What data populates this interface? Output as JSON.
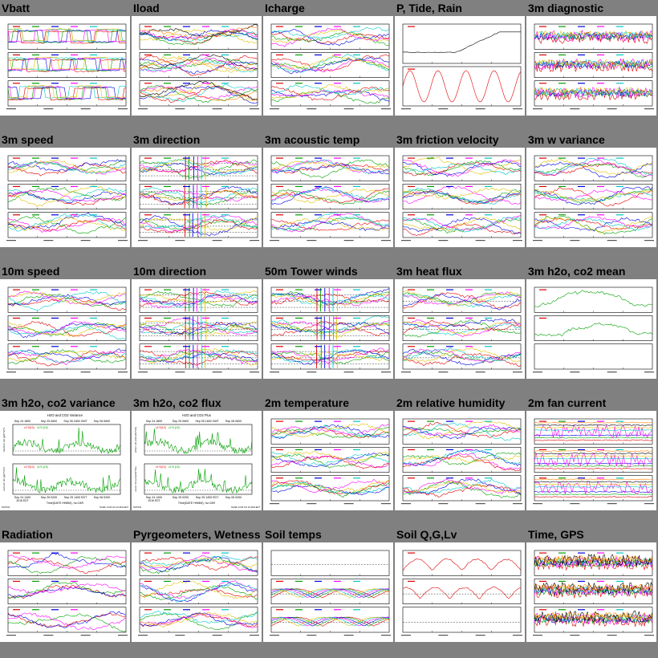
{
  "page": {
    "background": "#808080"
  },
  "series_colors": [
    "#e00000",
    "#00a000",
    "#0000e0",
    "#ff00ff",
    "#00c8c8",
    "#e0c000",
    "#000000",
    "#ff8000"
  ],
  "panels": [
    {
      "title": "Vbatt",
      "kind": "lines",
      "sub": 3,
      "lines": 6
    },
    {
      "title": "Iload",
      "kind": "lines",
      "sub": 3,
      "lines": 8
    },
    {
      "title": "Icharge",
      "kind": "lines",
      "sub": 3,
      "lines": 6
    },
    {
      "title": "P, Tide, Rain",
      "kind": "ptide",
      "sub": 2,
      "lines": 1
    },
    {
      "title": "3m diagnostic",
      "kind": "noise",
      "sub": 3,
      "lines": 6
    },
    {
      "title": "3m speed",
      "kind": "lines",
      "sub": 3,
      "lines": 6
    },
    {
      "title": "3m direction",
      "kind": "direction",
      "sub": 3,
      "lines": 6
    },
    {
      "title": "3m acoustic temp",
      "kind": "lines",
      "sub": 3,
      "lines": 6
    },
    {
      "title": "3m friction velocity",
      "kind": "lines",
      "sub": 3,
      "lines": 6
    },
    {
      "title": "3m w variance",
      "kind": "lines",
      "sub": 3,
      "lines": 6
    },
    {
      "title": "10m speed",
      "kind": "lines",
      "sub": 3,
      "lines": 6
    },
    {
      "title": "10m direction",
      "kind": "direction",
      "sub": 3,
      "lines": 6
    },
    {
      "title": "50m Tower winds",
      "kind": "direction",
      "sub": 3,
      "lines": 6
    },
    {
      "title": "3m heat flux",
      "kind": "lines",
      "sub": 3,
      "lines": 6
    },
    {
      "title": "3m h2o, co2 mean",
      "kind": "lines",
      "sub": 3,
      "lines": 1
    },
    {
      "title": "3m h2o, co2 variance",
      "kind": "bigtwo",
      "sub": 2,
      "lines": 2,
      "detail": {
        "title": "H2O and CO2 Variance",
        "top_ticks": [
          "Sep 24 1800",
          "Sep 25 0600",
          "Sep 05 1800 GMT",
          "Sep 06 0600"
        ],
        "legend": [
          "c1*0(10)",
          "c1*0.(15)"
        ],
        "y_top": "h2o'h2o' 3m (g/m^3)^2",
        "y_bottom": "co2'co2' 3m (g/m^3)^2",
        "bottom_ticks": [
          "Sep 24 1400",
          "Sep 25 0200",
          "Sep 25 1400 EDT",
          "Sep 06 0200"
        ],
        "year_note": "2016 EDT",
        "xlabel": "Time(DATE HHMM), hv=24R",
        "footer_left": "NOST24",
        "footer_right": "NCAR/ 14:06 Oct 24 2016 EDT"
      }
    },
    {
      "title": "3m h2o, co2 flux",
      "kind": "bigtwo",
      "sub": 2,
      "lines": 2,
      "detail": {
        "title": "H2O and CO2 Flux",
        "top_ticks": [
          "Sep 24 1800",
          "Sep 25 0600",
          "Sep 05 1800 GMT",
          "Sep 06 0600"
        ],
        "legend": [
          "c1*0(10)",
          "c1*0.(15)"
        ],
        "y_top": "w'h2o' 3m (mmol/m^2/s)",
        "y_bottom": "w'co2' 3m (umol/m^2/s)",
        "bottom_ticks": [
          "Sep 24 1400",
          "Sep 25 0200",
          "Sep 25 1400 EDT",
          "Sep 06 0200"
        ],
        "year_note": "2016 EDT",
        "xlabel": "Time(DATE HHMM), hv=24R",
        "footer_left": "NOST24",
        "footer_right": "NCAR/ 14:06 Oct 24 2016 EDT"
      }
    },
    {
      "title": "2m temperature",
      "kind": "lines",
      "sub": 3,
      "lines": 6
    },
    {
      "title": "2m relative humidity",
      "kind": "lines",
      "sub": 3,
      "lines": 6
    },
    {
      "title": "2m fan current",
      "kind": "fan",
      "sub": 3,
      "lines": 8
    },
    {
      "title": "Radiation",
      "kind": "lines",
      "sub": 3,
      "lines": 4
    },
    {
      "title": "Pyrgeometers, Wetness",
      "kind": "lines",
      "sub": 3,
      "lines": 6
    },
    {
      "title": "Soil temps",
      "kind": "soil",
      "sub": 3,
      "lines": 6
    },
    {
      "title": "Soil Q,G,Lv",
      "kind": "soilq",
      "sub": 3,
      "lines": 1
    },
    {
      "title": "Time, GPS",
      "kind": "noise",
      "sub": 3,
      "lines": 8
    }
  ]
}
